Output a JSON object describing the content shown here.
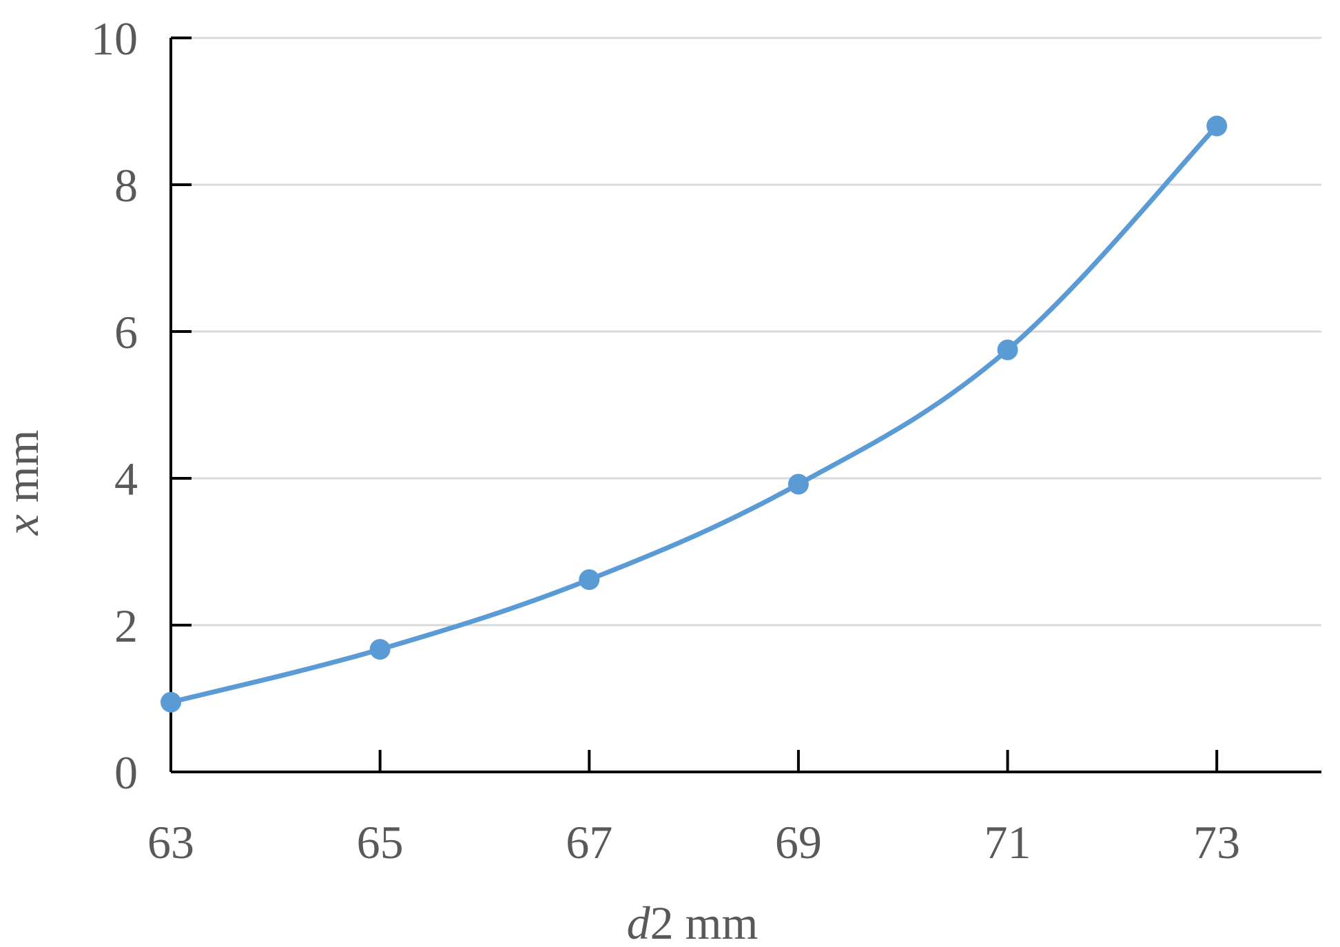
{
  "chart_data": {
    "type": "line",
    "smooth": true,
    "markers": true,
    "grid": true,
    "legend": "none",
    "x": [
      63,
      65,
      67,
      69,
      71,
      73
    ],
    "series": [
      {
        "values": [
          0.95,
          1.67,
          2.62,
          3.92,
          5.75,
          8.8
        ],
        "color": "#5b9bd5"
      }
    ],
    "xlim": [
      63,
      74
    ],
    "ylim": [
      0,
      10
    ],
    "x_ticks": [
      "63",
      "65",
      "67",
      "69",
      "71",
      "73"
    ],
    "y_ticks": [
      "0",
      "2",
      "4",
      "6",
      "8",
      "10"
    ],
    "xlabel": {
      "italic": "d",
      "rest": "2  mm"
    },
    "ylabel": {
      "italic": "x",
      "rest": " mm"
    }
  }
}
